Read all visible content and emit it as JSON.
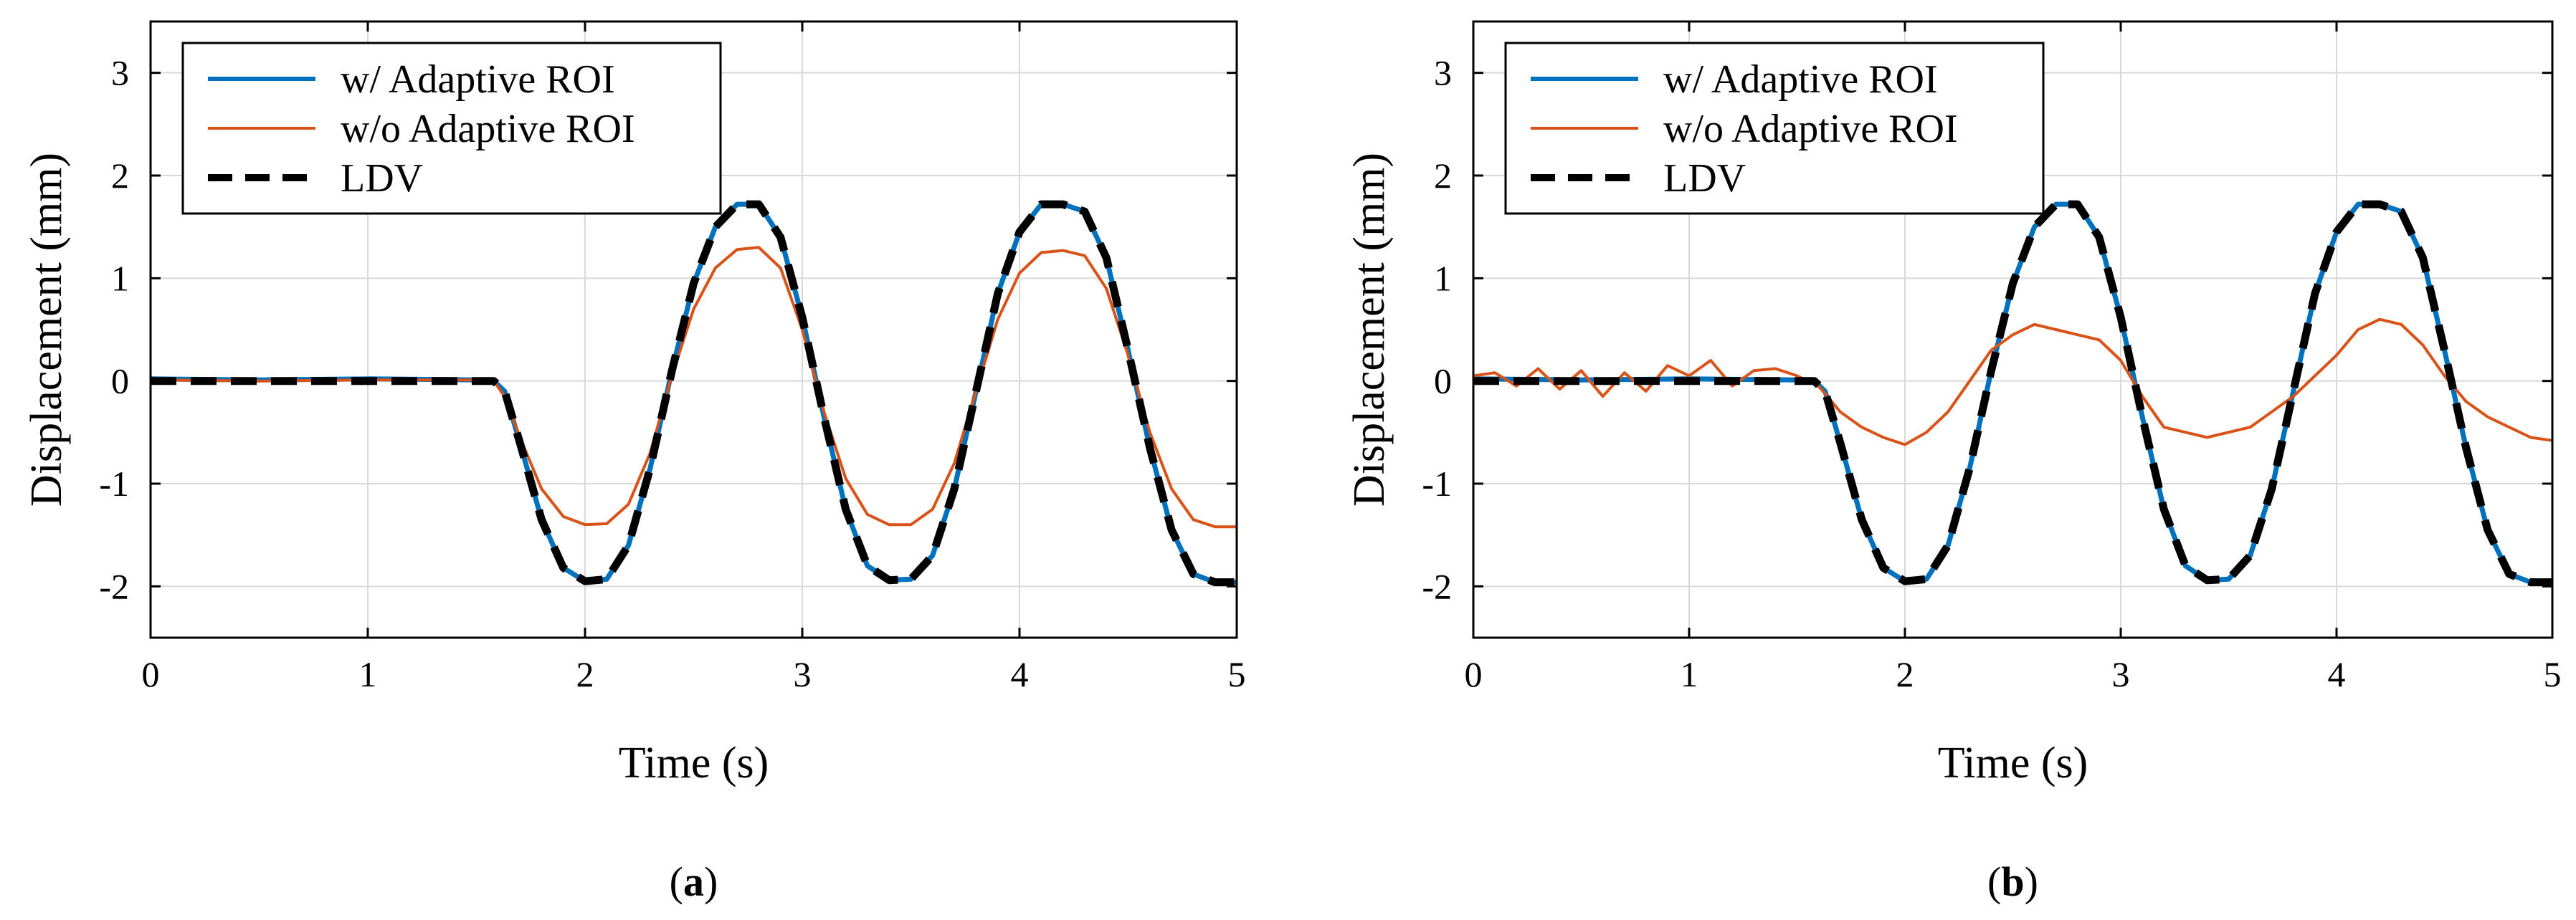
{
  "colors": {
    "adaptive": "#0072BD",
    "no_adaptive": "#D95319",
    "ldv": "#000000",
    "grid": "#d9d9d9"
  },
  "chart_data": [
    {
      "type": "line",
      "panel": "a",
      "caption": {
        "open": "(",
        "letter": "a",
        "close": ")"
      },
      "xlabel": "Time (s)",
      "ylabel": "Displacement (mm)",
      "xlim": [
        0,
        5
      ],
      "ylim": [
        -2.5,
        3.5
      ],
      "xticks": [
        0,
        1,
        2,
        3,
        4,
        5
      ],
      "yticks": [
        3,
        2,
        1,
        0,
        -1,
        -2
      ],
      "grid": true,
      "legend_position": "top-left",
      "series": [
        {
          "name": "w/ Adaptive  ROI",
          "style": "solid",
          "x": [
            0,
            0.5,
            1,
            1.5,
            1.58,
            1.63,
            1.7,
            1.8,
            1.9,
            2.0,
            2.1,
            2.2,
            2.3,
            2.4,
            2.5,
            2.6,
            2.7,
            2.8,
            2.9,
            3.0,
            3.1,
            3.2,
            3.3,
            3.4,
            3.5,
            3.6,
            3.7,
            3.8,
            3.9,
            4.0,
            4.1,
            4.2,
            4.3,
            4.4,
            4.5,
            4.6,
            4.7,
            4.8,
            4.9,
            5.0
          ],
          "y": [
            0.02,
            0.01,
            0.02,
            0.01,
            0.0,
            -0.1,
            -0.6,
            -1.35,
            -1.82,
            -1.95,
            -1.93,
            -1.6,
            -0.85,
            0.1,
            0.95,
            1.5,
            1.72,
            1.72,
            1.4,
            0.62,
            -0.35,
            -1.25,
            -1.8,
            -1.94,
            -1.93,
            -1.7,
            -1.05,
            -0.1,
            0.85,
            1.45,
            1.72,
            1.72,
            1.65,
            1.2,
            0.3,
            -0.65,
            -1.45,
            -1.88,
            -1.96,
            -1.96
          ]
        },
        {
          "name": "w/o Adaptive  ROI",
          "style": "solid",
          "x": [
            0,
            0.5,
            1,
            1.5,
            1.58,
            1.63,
            1.7,
            1.8,
            1.9,
            2.0,
            2.1,
            2.2,
            2.3,
            2.4,
            2.5,
            2.6,
            2.7,
            2.8,
            2.9,
            3.0,
            3.1,
            3.2,
            3.3,
            3.4,
            3.5,
            3.6,
            3.7,
            3.8,
            3.9,
            4.0,
            4.1,
            4.2,
            4.3,
            4.4,
            4.5,
            4.6,
            4.7,
            4.8,
            4.9,
            5.0
          ],
          "y": [
            0.01,
            0.0,
            0.01,
            0.01,
            0.0,
            -0.15,
            -0.55,
            -1.05,
            -1.32,
            -1.4,
            -1.39,
            -1.2,
            -0.7,
            0.05,
            0.7,
            1.1,
            1.28,
            1.3,
            1.1,
            0.5,
            -0.3,
            -0.95,
            -1.3,
            -1.4,
            -1.4,
            -1.25,
            -0.8,
            -0.1,
            0.6,
            1.05,
            1.25,
            1.27,
            1.22,
            0.9,
            0.25,
            -0.5,
            -1.05,
            -1.35,
            -1.42,
            -1.42
          ]
        },
        {
          "name": "LDV",
          "style": "dashed",
          "x": [
            0,
            0.5,
            1,
            1.5,
            1.58,
            1.63,
            1.7,
            1.8,
            1.9,
            2.0,
            2.1,
            2.2,
            2.3,
            2.4,
            2.5,
            2.6,
            2.7,
            2.8,
            2.9,
            3.0,
            3.1,
            3.2,
            3.3,
            3.4,
            3.5,
            3.6,
            3.7,
            3.8,
            3.9,
            4.0,
            4.1,
            4.2,
            4.3,
            4.4,
            4.5,
            4.6,
            4.7,
            4.8,
            4.9,
            5.0
          ],
          "y": [
            0,
            0,
            0,
            0,
            0,
            -0.1,
            -0.6,
            -1.35,
            -1.82,
            -1.95,
            -1.93,
            -1.6,
            -0.85,
            0.1,
            0.95,
            1.5,
            1.72,
            1.72,
            1.4,
            0.62,
            -0.35,
            -1.25,
            -1.8,
            -1.94,
            -1.93,
            -1.7,
            -1.05,
            -0.1,
            0.85,
            1.45,
            1.72,
            1.72,
            1.65,
            1.2,
            0.3,
            -0.65,
            -1.45,
            -1.88,
            -1.96,
            -1.96
          ]
        }
      ]
    },
    {
      "type": "line",
      "panel": "b",
      "caption": {
        "open": "(",
        "letter": "b",
        "close": ")"
      },
      "xlabel": "Time (s)",
      "ylabel": "Displacement (mm)",
      "xlim": [
        0,
        5
      ],
      "ylim": [
        -2.5,
        3.5
      ],
      "xticks": [
        0,
        1,
        2,
        3,
        4,
        5
      ],
      "yticks": [
        3,
        2,
        1,
        0,
        -1,
        -2
      ],
      "grid": true,
      "legend_position": "top-left",
      "series": [
        {
          "name": "w/ Adaptive  ROI",
          "style": "solid",
          "x": [
            0,
            0.5,
            1,
            1.5,
            1.58,
            1.63,
            1.7,
            1.8,
            1.9,
            2.0,
            2.1,
            2.2,
            2.3,
            2.4,
            2.5,
            2.6,
            2.7,
            2.8,
            2.9,
            3.0,
            3.1,
            3.2,
            3.3,
            3.4,
            3.5,
            3.6,
            3.7,
            3.8,
            3.9,
            4.0,
            4.1,
            4.2,
            4.3,
            4.4,
            4.5,
            4.6,
            4.7,
            4.8,
            4.9,
            5.0
          ],
          "y": [
            0.02,
            0.01,
            0.02,
            0.01,
            0.0,
            -0.1,
            -0.6,
            -1.35,
            -1.82,
            -1.95,
            -1.93,
            -1.6,
            -0.85,
            0.1,
            0.95,
            1.5,
            1.72,
            1.72,
            1.4,
            0.62,
            -0.35,
            -1.25,
            -1.8,
            -1.94,
            -1.93,
            -1.7,
            -1.05,
            -0.1,
            0.85,
            1.45,
            1.72,
            1.72,
            1.65,
            1.2,
            0.3,
            -0.65,
            -1.45,
            -1.88,
            -1.96,
            -1.96
          ]
        },
        {
          "name": "w/o Adaptive  ROI",
          "style": "solid",
          "x": [
            0,
            0.1,
            0.2,
            0.3,
            0.4,
            0.5,
            0.6,
            0.7,
            0.8,
            0.9,
            1.0,
            1.1,
            1.2,
            1.3,
            1.4,
            1.5,
            1.6,
            1.7,
            1.8,
            1.9,
            2.0,
            2.1,
            2.2,
            2.3,
            2.4,
            2.5,
            2.6,
            2.7,
            2.8,
            2.9,
            3.0,
            3.1,
            3.2,
            3.3,
            3.4,
            3.5,
            3.6,
            3.7,
            3.8,
            3.9,
            4.0,
            4.1,
            4.2,
            4.3,
            4.4,
            4.5,
            4.6,
            4.7,
            4.8,
            4.9,
            5.0
          ],
          "y": [
            0.05,
            0.08,
            -0.05,
            0.12,
            -0.08,
            0.1,
            -0.15,
            0.08,
            -0.1,
            0.15,
            0.05,
            0.2,
            -0.05,
            0.1,
            0.12,
            0.05,
            -0.05,
            -0.3,
            -0.45,
            -0.55,
            -0.62,
            -0.5,
            -0.3,
            0.0,
            0.3,
            0.45,
            0.55,
            0.5,
            0.45,
            0.4,
            0.2,
            -0.15,
            -0.45,
            -0.5,
            -0.55,
            -0.5,
            -0.45,
            -0.3,
            -0.15,
            0.05,
            0.25,
            0.5,
            0.6,
            0.55,
            0.35,
            0.05,
            -0.2,
            -0.35,
            -0.45,
            -0.55,
            -0.58
          ]
        },
        {
          "name": "LDV",
          "style": "dashed",
          "x": [
            0,
            0.5,
            1,
            1.5,
            1.58,
            1.63,
            1.7,
            1.8,
            1.9,
            2.0,
            2.1,
            2.2,
            2.3,
            2.4,
            2.5,
            2.6,
            2.7,
            2.8,
            2.9,
            3.0,
            3.1,
            3.2,
            3.3,
            3.4,
            3.5,
            3.6,
            3.7,
            3.8,
            3.9,
            4.0,
            4.1,
            4.2,
            4.3,
            4.4,
            4.5,
            4.6,
            4.7,
            4.8,
            4.9,
            5.0
          ],
          "y": [
            0,
            0,
            0,
            0,
            0,
            -0.1,
            -0.6,
            -1.35,
            -1.82,
            -1.95,
            -1.93,
            -1.6,
            -0.85,
            0.1,
            0.95,
            1.5,
            1.72,
            1.72,
            1.4,
            0.62,
            -0.35,
            -1.25,
            -1.8,
            -1.94,
            -1.93,
            -1.7,
            -1.05,
            -0.1,
            0.85,
            1.45,
            1.72,
            1.72,
            1.65,
            1.2,
            0.3,
            -0.65,
            -1.45,
            -1.88,
            -1.96,
            -1.96
          ]
        }
      ]
    }
  ]
}
